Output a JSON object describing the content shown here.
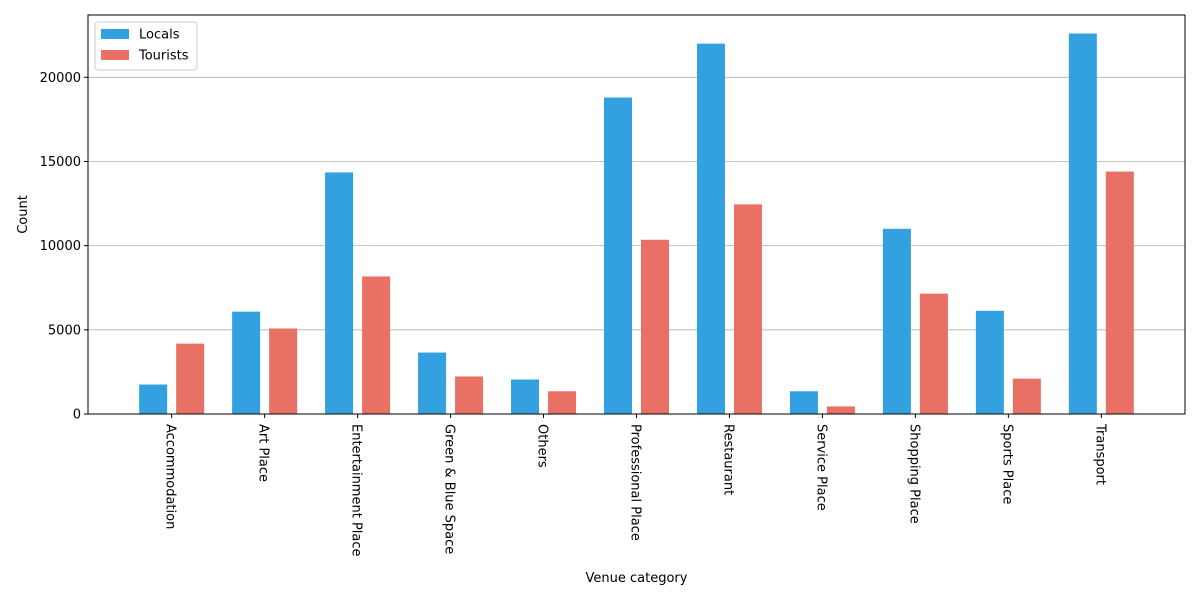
{
  "chart_data": {
    "type": "bar",
    "title": "",
    "xlabel": "Venue category",
    "ylabel": "Count",
    "categories": [
      "Accommodation",
      "Art Place",
      "Entertainment Place",
      "Green & Blue Space",
      "Others",
      "Professional Place",
      "Restaurant",
      "Service Place",
      "Shopping Place",
      "Sports Place",
      "Transport"
    ],
    "series": [
      {
        "name": "Locals",
        "color": "#33a1e0",
        "values": [
          1750,
          6080,
          14350,
          3650,
          2050,
          18800,
          22000,
          1350,
          11000,
          6130,
          22600
        ]
      },
      {
        "name": "Tourists",
        "color": "#e87064",
        "values": [
          4180,
          5080,
          8170,
          2230,
          1350,
          10350,
          12450,
          450,
          7150,
          2100,
          14400
        ]
      }
    ],
    "ylim": [
      0,
      23700
    ],
    "yticks": [
      0,
      5000,
      10000,
      15000,
      20000
    ],
    "grid": "horizontal",
    "legend_position": "top-left",
    "x_tick_rotation": "90-clockwise"
  }
}
